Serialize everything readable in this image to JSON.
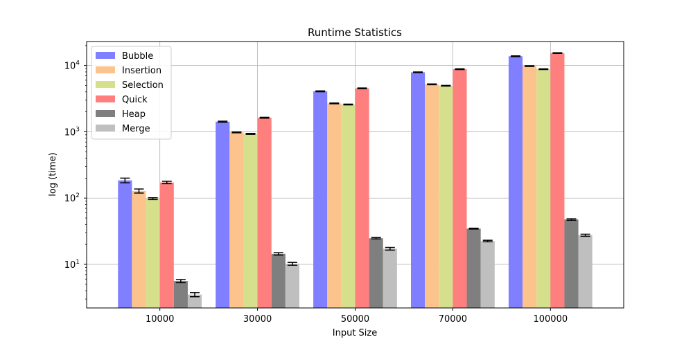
{
  "chart_data": {
    "type": "bar",
    "title": "Runtime Statistics",
    "xlabel": "Input Size",
    "ylabel": "log (time)",
    "yscale": "log",
    "ylim": [
      2.2,
      23000
    ],
    "grid": true,
    "legend_position": "top-left",
    "categories": [
      "10000",
      "30000",
      "50000",
      "70000",
      "100000"
    ],
    "series": [
      {
        "name": "Bubble",
        "color": "#7f7fff",
        "values": [
          185,
          1420,
          4080,
          7900,
          13800
        ],
        "errors": [
          15,
          25,
          60,
          90,
          180
        ]
      },
      {
        "name": "Insertion",
        "color": "#fcc48c",
        "values": [
          128,
          980,
          2680,
          5200,
          9800
        ],
        "errors": [
          9,
          15,
          35,
          70,
          130
        ]
      },
      {
        "name": "Selection",
        "color": "#d6e08c",
        "values": [
          98,
          930,
          2580,
          4950,
          8800
        ],
        "errors": [
          3,
          15,
          35,
          60,
          110
        ]
      },
      {
        "name": "Quick",
        "color": "#ff7f7f",
        "values": [
          172,
          1630,
          4520,
          8800,
          15400
        ],
        "errors": [
          7,
          25,
          60,
          120,
          180
        ]
      },
      {
        "name": "Heap",
        "color": "#7f7f7f",
        "values": [
          5.6,
          14.4,
          24.8,
          34.6,
          47.5
        ],
        "errors": [
          0.3,
          0.6,
          0.6,
          0.5,
          1.2
        ]
      },
      {
        "name": "Merge",
        "color": "#bfbfbf",
        "values": [
          3.5,
          10.2,
          17.2,
          22.5,
          27.5
        ],
        "errors": [
          0.25,
          0.5,
          0.8,
          0.6,
          1.0
        ]
      }
    ],
    "yticks": [
      {
        "value": 10,
        "base": "10",
        "exp": "1"
      },
      {
        "value": 100,
        "base": "10",
        "exp": "2"
      },
      {
        "value": 1000,
        "base": "10",
        "exp": "3"
      },
      {
        "value": 10000,
        "base": "10",
        "exp": "4"
      }
    ]
  }
}
